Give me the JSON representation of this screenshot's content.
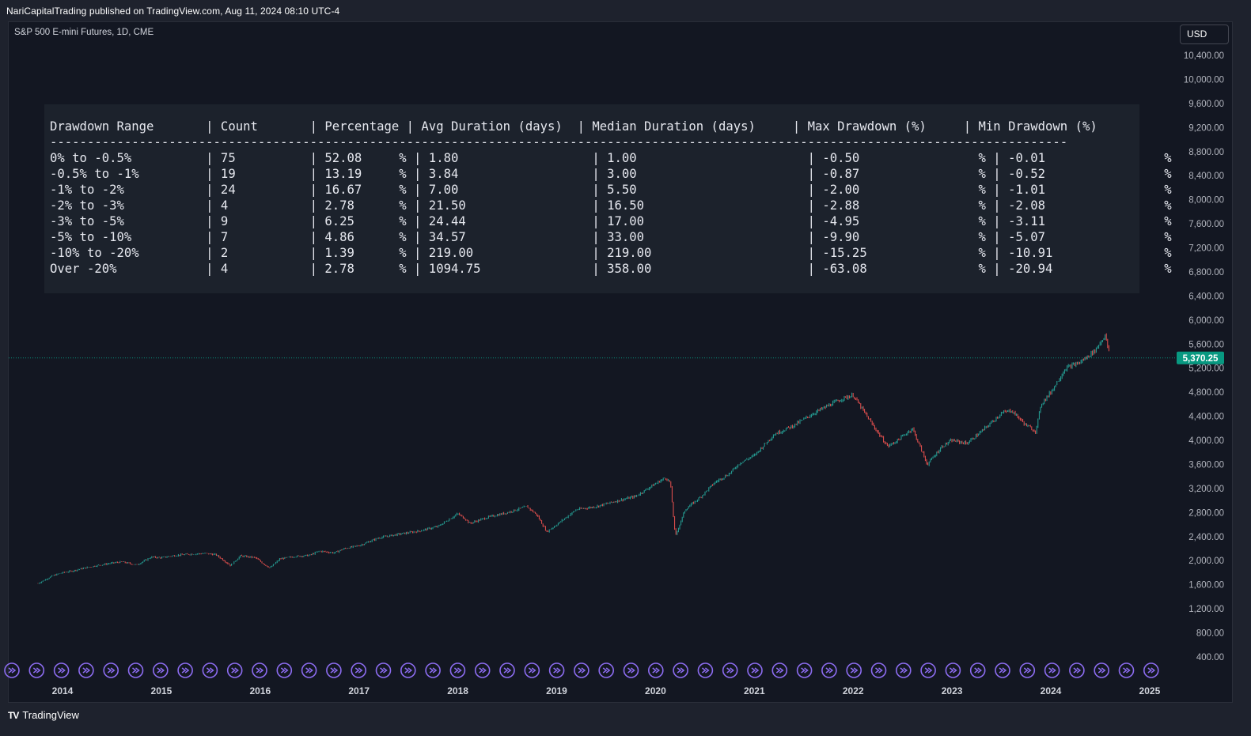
{
  "header": {
    "published": "NariCapitalTrading published on TradingView.com, Aug 11, 2024 08:10 UTC-4"
  },
  "symbol": "S&P 500 E-mini Futures, 1D, CME",
  "currency": "USD",
  "footer": {
    "brand": "TradingView",
    "logo": "TV"
  },
  "stats_table": {
    "headers": [
      "Drawdown Range",
      "Count",
      "Percentage",
      "Avg Duration (days)",
      "Median Duration (days)",
      "Max Drawdown (%)",
      "Min Drawdown (%)"
    ],
    "rows": [
      [
        "0% to -0.5%",
        "75",
        "52.08",
        "1.80",
        "1.00",
        "-0.50",
        "-0.01"
      ],
      [
        "-0.5% to -1%",
        "19",
        "13.19",
        "3.84",
        "3.00",
        "-0.87",
        "-0.52"
      ],
      [
        "-1% to -2%",
        "24",
        "16.67",
        "7.00",
        "5.50",
        "-2.00",
        "-1.01"
      ],
      [
        "-2% to -3%",
        "4",
        "2.78",
        "21.50",
        "16.50",
        "-2.88",
        "-2.08"
      ],
      [
        "-3% to -5%",
        "9",
        "6.25",
        "24.44",
        "17.00",
        "-4.95",
        "-3.11"
      ],
      [
        "-5% to -10%",
        "7",
        "4.86",
        "34.57",
        "33.00",
        "-9.90",
        "-5.07"
      ],
      [
        "-10% to -20%",
        "2",
        "1.39",
        "219.00",
        "219.00",
        "-15.25",
        "-10.91"
      ],
      [
        "Over -20%",
        "4",
        "2.78",
        "1094.75",
        "358.00",
        "-63.08",
        "-20.94"
      ]
    ],
    "percent_sign": "%"
  },
  "chart_data": {
    "type": "line",
    "title": "S&P 500 E-mini Futures, 1D, CME",
    "xlabel": "",
    "ylabel": "",
    "x_ticks": [
      "2014",
      "2015",
      "2016",
      "2017",
      "2018",
      "2019",
      "2020",
      "2021",
      "2022",
      "2023",
      "2024",
      "2025"
    ],
    "y_ticks": [
      "10,400.00",
      "10,000.00",
      "9,600.00",
      "9,200.00",
      "8,800.00",
      "8,400.00",
      "8,000.00",
      "7,600.00",
      "7,200.00",
      "6,800.00",
      "6,400.00",
      "6,000.00",
      "5,600.00",
      "5,200.00",
      "4,800.00",
      "4,400.00",
      "4,000.00",
      "3,600.00",
      "3,200.00",
      "2,800.00",
      "2,400.00",
      "2,000.00",
      "1,600.00",
      "1,200.00",
      "800.00",
      "400.00"
    ],
    "ylim": [
      400,
      10400
    ],
    "xlim": [
      2013.75,
      2025.6
    ],
    "last_price": 5370.25,
    "last_price_label": "5,370.25",
    "colors": {
      "up": "#26a69a",
      "down": "#ef5350",
      "price_badge": "#089981",
      "marker": "#8c6cf0"
    },
    "series": [
      {
        "x": [
          2013.75,
          2013.9,
          2014.0,
          2014.1,
          2014.2,
          2014.35,
          2014.5,
          2014.6,
          2014.75,
          2014.9,
          2015.0,
          2015.15,
          2015.3,
          2015.45,
          2015.55,
          2015.62,
          2015.7,
          2015.8,
          2015.95,
          2016.05,
          2016.1,
          2016.2,
          2016.35,
          2016.5,
          2016.6,
          2016.75,
          2016.85,
          2017.0,
          2017.2,
          2017.4,
          2017.6,
          2017.8,
          2018.0,
          2018.08,
          2018.12,
          2018.3,
          2018.5,
          2018.7,
          2018.8,
          2018.9,
          2019.0,
          2019.2,
          2019.4,
          2019.6,
          2019.8,
          2019.95,
          2020.1,
          2020.15,
          2020.2,
          2020.3,
          2020.45,
          2020.6,
          2020.75,
          2020.85,
          2021.0,
          2021.2,
          2021.4,
          2021.6,
          2021.75,
          2021.9,
          2022.0,
          2022.2,
          2022.35,
          2022.45,
          2022.6,
          2022.75,
          2022.9,
          2023.0,
          2023.15,
          2023.3,
          2023.5,
          2023.6,
          2023.75,
          2023.85,
          2023.9,
          2024.0,
          2024.15,
          2024.3,
          2024.45,
          2024.55,
          2024.6
        ],
        "y": [
          1620,
          1750,
          1800,
          1830,
          1870,
          1920,
          1960,
          1980,
          1930,
          2060,
          2050,
          2090,
          2110,
          2120,
          2100,
          2020,
          1920,
          2080,
          2050,
          1930,
          1880,
          2030,
          2070,
          2090,
          2160,
          2130,
          2200,
          2250,
          2380,
          2440,
          2490,
          2570,
          2780,
          2690,
          2620,
          2720,
          2800,
          2900,
          2760,
          2480,
          2600,
          2850,
          2900,
          2990,
          3070,
          3230,
          3380,
          3300,
          2400,
          2850,
          3050,
          3300,
          3450,
          3620,
          3750,
          4100,
          4250,
          4450,
          4580,
          4700,
          4750,
          4250,
          3900,
          4000,
          4200,
          3600,
          3900,
          4000,
          3950,
          4150,
          4450,
          4500,
          4250,
          4150,
          4600,
          4800,
          5200,
          5300,
          5500,
          5750,
          5370
        ]
      }
    ],
    "time_markers_count": 48
  }
}
